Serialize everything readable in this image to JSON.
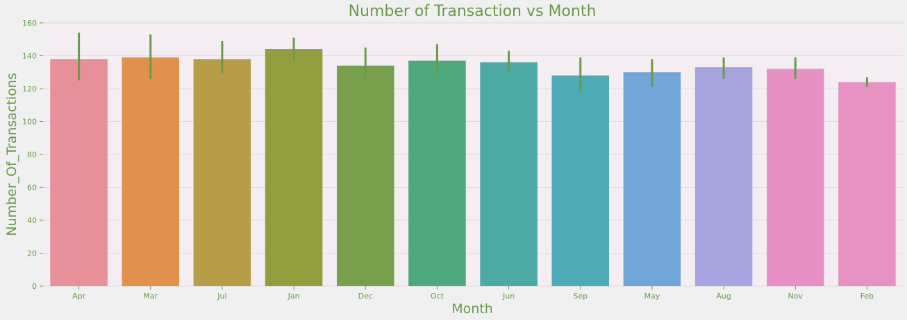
{
  "chart_data": {
    "type": "bar",
    "title": "Number of Transaction vs Month",
    "xlabel": "Month",
    "ylabel": "Number_Of_Transactions",
    "ylim": [
      0,
      160
    ],
    "yticks": [
      0,
      20,
      40,
      60,
      80,
      100,
      120,
      140,
      160
    ],
    "grid": true,
    "categories": [
      "Apr",
      "Mar",
      "Jul",
      "Jan",
      "Dec",
      "Oct",
      "Jun",
      "Sep",
      "May",
      "Aug",
      "Nov",
      "Feb"
    ],
    "values": [
      138,
      139,
      138,
      144,
      134,
      137,
      136,
      128,
      130,
      133,
      132,
      124
    ],
    "error_low": [
      125,
      126,
      129,
      137,
      126,
      129,
      130,
      118,
      121,
      126,
      126,
      121
    ],
    "error_high": [
      154,
      153,
      149,
      151,
      145,
      147,
      143,
      139,
      138,
      139,
      139,
      127
    ],
    "colors": [
      "#e8909a",
      "#e0914e",
      "#b89d48",
      "#929e3e",
      "#76a04c",
      "#4ea87c",
      "#4eaaa4",
      "#4eaab4",
      "#72a6d8",
      "#a6a4df",
      "#e890c6",
      "#e892c4"
    ],
    "error_color": "#6a9a4a",
    "text_color": "#6a9a4a",
    "background": "#f0f0f0",
    "plot_background": "#f4eef2"
  }
}
